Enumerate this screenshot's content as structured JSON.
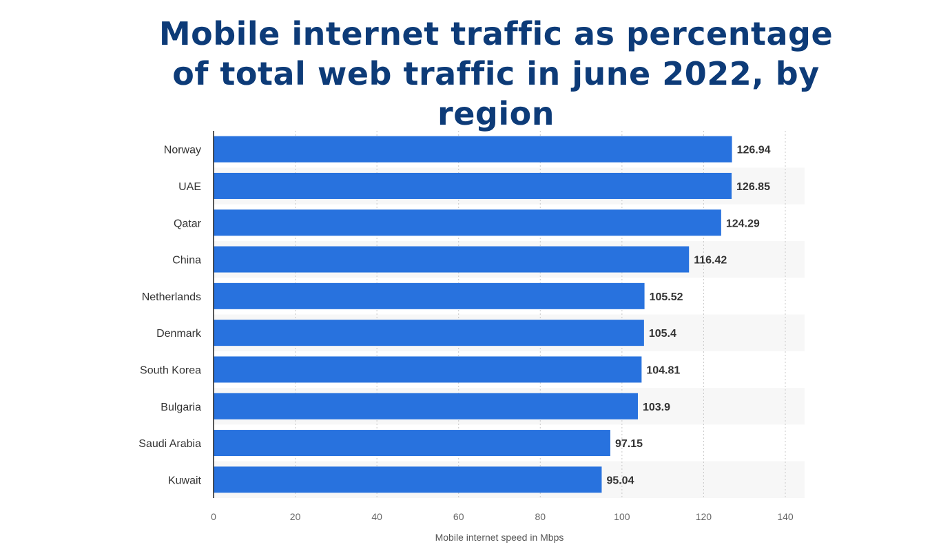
{
  "chart_data": {
    "type": "bar",
    "orientation": "horizontal",
    "title": "Mobile internet traffic as percentage of total web traffic in june 2022, by region",
    "xlabel": "Mobile internet speed in Mbps",
    "ylabel": "",
    "categories": [
      "Norway",
      "UAE",
      "Qatar",
      "China",
      "Netherlands",
      "Denmark",
      "South Korea",
      "Bulgaria",
      "Saudi Arabia",
      "Kuwait"
    ],
    "values": [
      126.94,
      126.85,
      124.29,
      116.42,
      105.52,
      105.4,
      104.81,
      103.9,
      97.15,
      95.04
    ],
    "value_labels": [
      "126.94",
      "126.85",
      "124.29",
      "116.42",
      "105.52",
      "105.4",
      "104.81",
      "103.9",
      "97.15",
      "95.04"
    ],
    "xlim": [
      0,
      140
    ],
    "x_ticks": [
      0,
      20,
      40,
      60,
      80,
      100,
      120,
      140
    ],
    "grid": "vertical-dotted",
    "bar_color": "#2872de",
    "title_color": "#0d3b78",
    "stripe_color": "#f7f7f7"
  }
}
